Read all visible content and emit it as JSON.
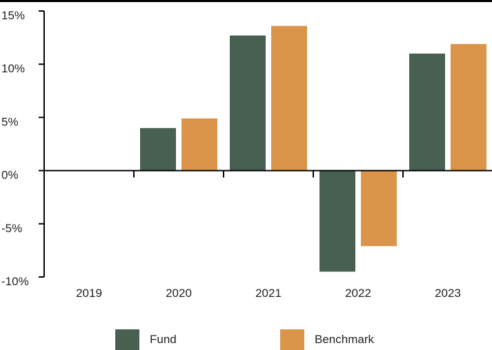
{
  "colors": {
    "fund": "#476052",
    "benchmark": "#da954a",
    "axis": "#000000",
    "text": "#222222"
  },
  "chart_data": {
    "type": "bar",
    "title": "",
    "xlabel": "",
    "ylabel": "",
    "categories": [
      "2019",
      "2020",
      "2021",
      "2022",
      "2023"
    ],
    "series": [
      {
        "name": "Fund",
        "values": [
          null,
          4.0,
          12.7,
          -9.5,
          11.0
        ]
      },
      {
        "name": "Benchmark",
        "values": [
          null,
          4.9,
          13.6,
          -7.1,
          11.9
        ]
      }
    ],
    "ylim": [
      -10,
      15
    ],
    "yticks": [
      -10,
      -5,
      0,
      5,
      10,
      15
    ],
    "ytick_labels": [
      "-10%",
      "-5%",
      "0%",
      "5%",
      "10%",
      "15%"
    ],
    "grid": false,
    "legend_position": "bottom"
  }
}
